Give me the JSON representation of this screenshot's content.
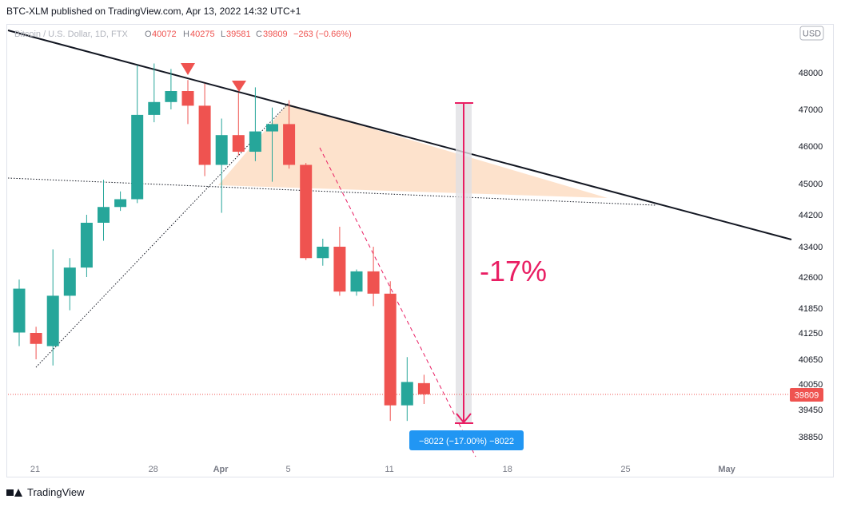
{
  "header": {
    "published": "BTC-XLM published on TradingView.com, Apr 13, 2022 14:32 UTC+1"
  },
  "legend": {
    "symbol": "Bitcoin / U.S. Dollar, 1D, FTX",
    "open_label": "O",
    "open": "40072",
    "high_label": "H",
    "high": "40275",
    "low_label": "L",
    "low": "39581",
    "close_label": "C",
    "close": "39809",
    "change": "−263 (−0.66%)",
    "currency": "USD"
  },
  "annotations": {
    "pct_label": "-17%",
    "measure_label": "−8022 (−17.00%) −8022",
    "price_tag": "39809"
  },
  "footer": {
    "brand": "TradingView"
  },
  "colors": {
    "up": "#26a69a",
    "down": "#ef5350",
    "accent": "#e91e63",
    "blue": "#2196f3",
    "triangle": "#fcd8bb"
  },
  "chart_data": {
    "type": "candlestick",
    "yticks": [
      48000,
      47000,
      46000,
      45000,
      44200,
      43400,
      42600,
      41850,
      41250,
      40650,
      40050,
      39450,
      38850
    ],
    "xtick_labels": [
      {
        "label": "21",
        "index": 0
      },
      {
        "label": "28",
        "index": 7
      },
      {
        "label": "Apr",
        "index": 11
      },
      {
        "label": "5",
        "index": 15
      },
      {
        "label": "11",
        "index": 21
      },
      {
        "label": "18",
        "index": 28
      },
      {
        "label": "25",
        "index": 35
      },
      {
        "label": "May",
        "index": 41
      }
    ],
    "candles": [
      {
        "o": 41260,
        "h": 42540,
        "l": 40950,
        "c": 42320
      },
      {
        "o": 41250,
        "h": 41400,
        "l": 40650,
        "c": 41000
      },
      {
        "o": 40950,
        "h": 43330,
        "l": 40500,
        "c": 42150
      },
      {
        "o": 42150,
        "h": 43100,
        "l": 41800,
        "c": 42850
      },
      {
        "o": 42850,
        "h": 44200,
        "l": 42600,
        "c": 44000
      },
      {
        "o": 44000,
        "h": 45100,
        "l": 43550,
        "c": 44400
      },
      {
        "o": 44400,
        "h": 44800,
        "l": 44300,
        "c": 44600
      },
      {
        "o": 44600,
        "h": 48200,
        "l": 44500,
        "c": 46850
      },
      {
        "o": 46850,
        "h": 48250,
        "l": 46650,
        "c": 47200
      },
      {
        "o": 47200,
        "h": 48100,
        "l": 47000,
        "c": 47500
      },
      {
        "o": 47500,
        "h": 47800,
        "l": 46600,
        "c": 47100
      },
      {
        "o": 47100,
        "h": 47700,
        "l": 45200,
        "c": 45500
      },
      {
        "o": 45500,
        "h": 46750,
        "l": 44250,
        "c": 46300
      },
      {
        "o": 46300,
        "h": 47450,
        "l": 45750,
        "c": 45850
      },
      {
        "o": 45850,
        "h": 47600,
        "l": 45600,
        "c": 46400
      },
      {
        "o": 46400,
        "h": 47050,
        "l": 45050,
        "c": 46600
      },
      {
        "o": 46600,
        "h": 47250,
        "l": 45400,
        "c": 45500
      },
      {
        "o": 45500,
        "h": 45550,
        "l": 43050,
        "c": 43100
      },
      {
        "o": 43100,
        "h": 43600,
        "l": 42900,
        "c": 43400
      },
      {
        "o": 43400,
        "h": 43900,
        "l": 42150,
        "c": 42250
      },
      {
        "o": 42250,
        "h": 42800,
        "l": 42150,
        "c": 42750
      },
      {
        "o": 42750,
        "h": 43400,
        "l": 41900,
        "c": 42200
      },
      {
        "o": 42200,
        "h": 42500,
        "l": 39200,
        "c": 39550
      },
      {
        "o": 39550,
        "h": 40700,
        "l": 39200,
        "c": 40100
      },
      {
        "o": 40072,
        "h": 40275,
        "l": 39581,
        "c": 39809
      }
    ]
  }
}
